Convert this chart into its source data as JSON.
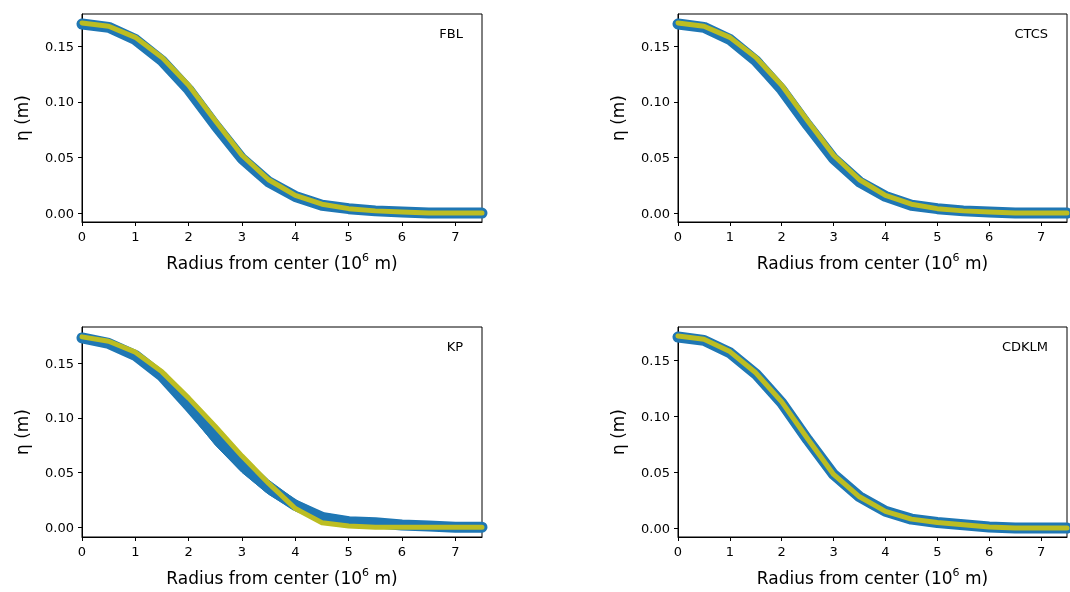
{
  "chart_data": [
    {
      "type": "line",
      "title": "FBL",
      "xlabel": "Radius from center (10$^{6}$ m)",
      "ylabel": "η (m)",
      "x": [
        0,
        0.5,
        1,
        1.5,
        2,
        2.5,
        3,
        3.5,
        4,
        4.5,
        5,
        5.5,
        6,
        6.5,
        7,
        7.5
      ],
      "xlim": [
        0,
        7.5
      ],
      "xticks": [
        0,
        1,
        2,
        3,
        4,
        5,
        6,
        7
      ],
      "ylim": [
        -0.008,
        0.179
      ],
      "yticks": [
        {
          "value": 0,
          "label": "0.00"
        },
        {
          "value": 0.05,
          "label": "0.05"
        },
        {
          "value": 0.1,
          "label": "0.10"
        },
        {
          "value": 0.15,
          "label": "0.15"
        }
      ],
      "grid": false,
      "marker": "none",
      "series": [
        {
          "color": "#1f77b4",
          "values": [
            0.17,
            0.167,
            0.156,
            0.137,
            0.111,
            0.079,
            0.049,
            0.028,
            0.015,
            0.007,
            0.004,
            0.002,
            0.001,
            0,
            0,
            0
          ]
        },
        {
          "color": "#bcbd22",
          "values": [
            0.171,
            0.168,
            0.158,
            0.14,
            0.115,
            0.083,
            0.052,
            0.03,
            0.016,
            0.008,
            0.004,
            0.002,
            0.001,
            0,
            0,
            0
          ]
        }
      ]
    },
    {
      "type": "line",
      "title": "CTCS",
      "xlabel": "Radius from center (10$^{6}$ m)",
      "ylabel": "η (m)",
      "x": [
        0,
        0.5,
        1,
        1.5,
        2,
        2.5,
        3,
        3.5,
        4,
        4.5,
        5,
        5.5,
        6,
        6.5,
        7,
        7.5
      ],
      "xlim": [
        0,
        7.5
      ],
      "xticks": [
        0,
        1,
        2,
        3,
        4,
        5,
        6,
        7
      ],
      "ylim": [
        -0.008,
        0.179
      ],
      "yticks": [
        {
          "value": 0,
          "label": "0.00"
        },
        {
          "value": 0.05,
          "label": "0.05"
        },
        {
          "value": 0.1,
          "label": "0.10"
        },
        {
          "value": 0.15,
          "label": "0.15"
        }
      ],
      "grid": false,
      "marker": "none",
      "series": [
        {
          "color": "#1f77b4",
          "values": [
            0.17,
            0.167,
            0.156,
            0.137,
            0.111,
            0.079,
            0.049,
            0.028,
            0.015,
            0.007,
            0.004,
            0.002,
            0.001,
            0,
            0,
            0
          ]
        },
        {
          "color": "#bcbd22",
          "values": [
            0.171,
            0.168,
            0.158,
            0.14,
            0.115,
            0.083,
            0.052,
            0.03,
            0.016,
            0.008,
            0.004,
            0.002,
            0.001,
            0,
            0,
            0
          ]
        }
      ]
    },
    {
      "type": "line",
      "title": "KP",
      "xlabel": "Radius from center (10$^{6}$ m)",
      "ylabel": "η (m)",
      "x": [
        0,
        0.5,
        1,
        1.5,
        2,
        2.5,
        3,
        3.5,
        4,
        4.5,
        5,
        5.5,
        6,
        6.5,
        7,
        7.5
      ],
      "xlim": [
        0,
        7.5
      ],
      "xticks": [
        0,
        1,
        2,
        3,
        4,
        5,
        6,
        7
      ],
      "ylim": [
        -0.009,
        0.183
      ],
      "yticks": [
        {
          "value": 0,
          "label": "0.00"
        },
        {
          "value": 0.05,
          "label": "0.05"
        },
        {
          "value": 0.1,
          "label": "0.10"
        },
        {
          "value": 0.15,
          "label": "0.15"
        }
      ],
      "grid": false,
      "marker": "none",
      "series": [
        {
          "color": "#1f77b4",
          "values": [
            0.173,
            0.168,
            0.157,
            0.138,
            0.111,
            0.083,
            0.057,
            0.036,
            0.02,
            0.009,
            0.005,
            0.004,
            0.002,
            0.001,
            0,
            0
          ],
          "lower": [
            0.172,
            0.167,
            0.155,
            0.135,
            0.105,
            0.075,
            0.05,
            0.03,
            0.015,
            0.005,
            0.002,
            0.001,
            0,
            0,
            0,
            0
          ],
          "upper": [
            0.175,
            0.171,
            0.161,
            0.143,
            0.119,
            0.093,
            0.066,
            0.043,
            0.025,
            0.013,
            0.009,
            0.007,
            0.004,
            0.002,
            0.001,
            0
          ]
        },
        {
          "color": "#bcbd22",
          "values": [
            0.174,
            0.17,
            0.16,
            0.142,
            0.118,
            0.092,
            0.065,
            0.04,
            0.017,
            0.004,
            0.001,
            0,
            0,
            0,
            0,
            0
          ]
        }
      ]
    },
    {
      "type": "line",
      "title": "CDKLM",
      "xlabel": "Radius from center (10$^{6}$ m)",
      "ylabel": "η (m)",
      "x": [
        0,
        0.5,
        1,
        1.5,
        2,
        2.5,
        3,
        3.5,
        4,
        4.5,
        5,
        5.5,
        6,
        6.5,
        7,
        7.5
      ],
      "xlim": [
        0,
        7.5
      ],
      "xticks": [
        0,
        1,
        2,
        3,
        4,
        5,
        6,
        7
      ],
      "ylim": [
        -0.008,
        0.18
      ],
      "yticks": [
        {
          "value": 0,
          "label": "0.00"
        },
        {
          "value": 0.05,
          "label": "0.05"
        },
        {
          "value": 0.1,
          "label": "0.10"
        },
        {
          "value": 0.15,
          "label": "0.15"
        }
      ],
      "grid": false,
      "marker": "none",
      "series": [
        {
          "color": "#1f77b4",
          "values": [
            0.171,
            0.168,
            0.157,
            0.138,
            0.112,
            0.079,
            0.048,
            0.028,
            0.015,
            0.008,
            0.005,
            0.003,
            0.001,
            0,
            0,
            0
          ]
        },
        {
          "color": "#bcbd22",
          "values": [
            0.172,
            0.169,
            0.158,
            0.139,
            0.113,
            0.08,
            0.048,
            0.028,
            0.015,
            0.008,
            0.005,
            0.003,
            0.001,
            0,
            0,
            0
          ]
        }
      ]
    }
  ]
}
